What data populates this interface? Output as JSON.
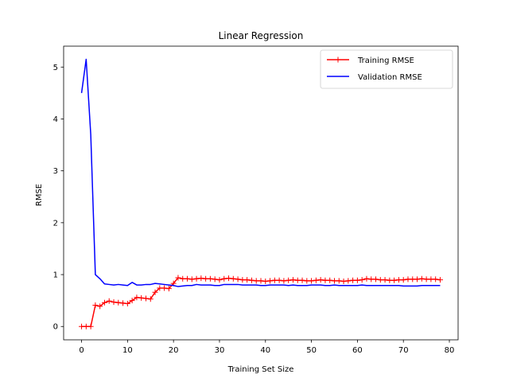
{
  "chart_data": {
    "type": "line",
    "title": "Linear Regression",
    "xlabel": "Training Set Size",
    "ylabel": "RMSE",
    "xlim": [
      -3.9,
      81.9
    ],
    "ylim": [
      -0.257,
      5.403
    ],
    "xticks": [
      0,
      10,
      20,
      30,
      40,
      50,
      60,
      70,
      80
    ],
    "yticks": [
      0,
      1,
      2,
      3,
      4,
      5
    ],
    "grid": false,
    "legend_position": "top-right",
    "series": [
      {
        "name": "Training RMSE",
        "color": "#ff0000",
        "marker": "plus",
        "x": [
          0,
          1,
          2,
          3,
          4,
          5,
          6,
          7,
          8,
          9,
          10,
          11,
          12,
          13,
          14,
          15,
          16,
          17,
          18,
          19,
          20,
          21,
          22,
          23,
          24,
          25,
          26,
          27,
          28,
          29,
          30,
          31,
          32,
          33,
          34,
          35,
          36,
          37,
          38,
          39,
          40,
          41,
          42,
          43,
          44,
          45,
          46,
          47,
          48,
          49,
          50,
          51,
          52,
          53,
          54,
          55,
          56,
          57,
          58,
          59,
          60,
          61,
          62,
          63,
          64,
          65,
          66,
          67,
          68,
          69,
          70,
          71,
          72,
          73,
          74,
          75,
          76,
          77,
          78
        ],
        "values": [
          0.0,
          0.0,
          0.0,
          0.41,
          0.39,
          0.46,
          0.49,
          0.47,
          0.46,
          0.45,
          0.44,
          0.5,
          0.56,
          0.55,
          0.54,
          0.53,
          0.66,
          0.74,
          0.74,
          0.73,
          0.83,
          0.94,
          0.92,
          0.92,
          0.91,
          0.92,
          0.93,
          0.92,
          0.92,
          0.91,
          0.9,
          0.92,
          0.93,
          0.92,
          0.91,
          0.9,
          0.9,
          0.89,
          0.88,
          0.88,
          0.87,
          0.88,
          0.89,
          0.89,
          0.88,
          0.89,
          0.9,
          0.89,
          0.89,
          0.88,
          0.88,
          0.89,
          0.9,
          0.89,
          0.89,
          0.88,
          0.88,
          0.87,
          0.88,
          0.89,
          0.89,
          0.9,
          0.92,
          0.91,
          0.91,
          0.9,
          0.9,
          0.89,
          0.89,
          0.9,
          0.9,
          0.91,
          0.91,
          0.91,
          0.92,
          0.91,
          0.91,
          0.91,
          0.9
        ]
      },
      {
        "name": "Validation RMSE",
        "color": "#0000ff",
        "marker": "none",
        "x": [
          0,
          1,
          2,
          3,
          4,
          5,
          6,
          7,
          8,
          9,
          10,
          11,
          12,
          13,
          14,
          15,
          16,
          17,
          18,
          19,
          20,
          21,
          22,
          23,
          24,
          25,
          26,
          27,
          28,
          29,
          30,
          31,
          32,
          33,
          34,
          35,
          36,
          37,
          38,
          39,
          40,
          41,
          42,
          43,
          44,
          45,
          46,
          47,
          48,
          49,
          50,
          51,
          52,
          53,
          54,
          55,
          56,
          57,
          58,
          59,
          60,
          61,
          62,
          63,
          64,
          65,
          66,
          67,
          68,
          69,
          70,
          71,
          72,
          73,
          74,
          75,
          76,
          77,
          78
        ],
        "values": [
          4.5,
          5.15,
          3.7,
          1.0,
          0.92,
          0.82,
          0.81,
          0.8,
          0.81,
          0.8,
          0.79,
          0.85,
          0.8,
          0.8,
          0.81,
          0.81,
          0.83,
          0.82,
          0.81,
          0.8,
          0.79,
          0.77,
          0.78,
          0.79,
          0.79,
          0.81,
          0.8,
          0.8,
          0.8,
          0.79,
          0.79,
          0.81,
          0.81,
          0.81,
          0.81,
          0.8,
          0.8,
          0.8,
          0.8,
          0.79,
          0.79,
          0.8,
          0.8,
          0.8,
          0.8,
          0.79,
          0.8,
          0.79,
          0.79,
          0.79,
          0.8,
          0.8,
          0.8,
          0.79,
          0.79,
          0.8,
          0.79,
          0.79,
          0.79,
          0.79,
          0.79,
          0.8,
          0.79,
          0.79,
          0.79,
          0.79,
          0.79,
          0.79,
          0.79,
          0.79,
          0.78,
          0.78,
          0.78,
          0.78,
          0.79,
          0.79,
          0.79,
          0.79,
          0.79
        ]
      }
    ]
  }
}
